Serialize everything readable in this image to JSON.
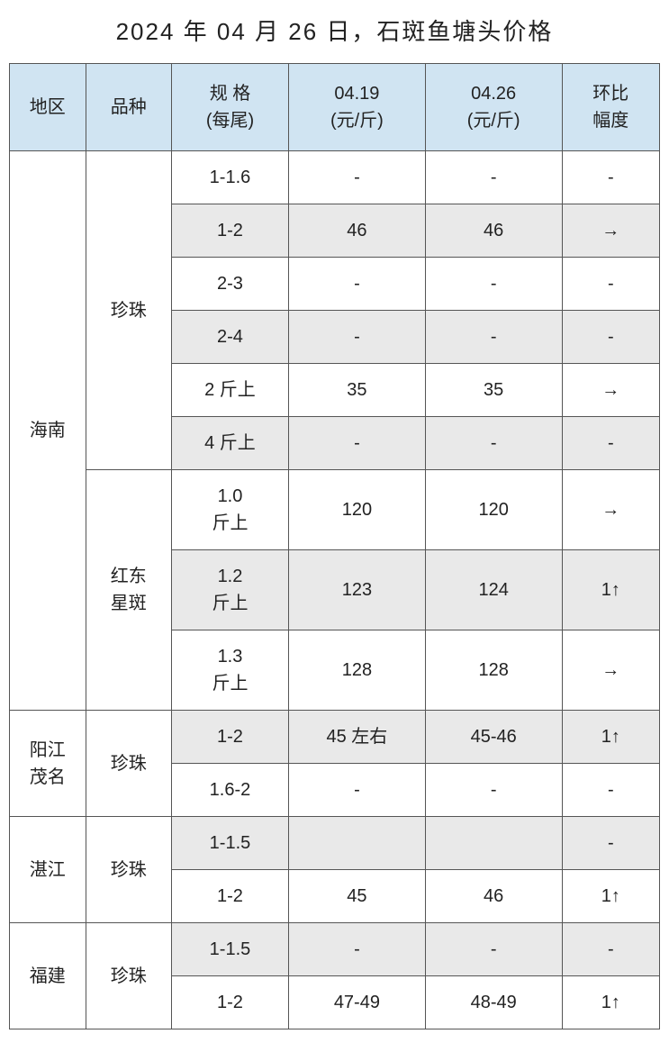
{
  "title": "2024 年 04 月 26 日，石斑鱼塘头价格",
  "headers": {
    "region": "地区",
    "variety": "品种",
    "spec": "规 格\n(每尾)",
    "price1": "04.19\n(元/斤)",
    "price2": "04.26\n(元/斤)",
    "trend": "环比\n幅度"
  },
  "colors": {
    "header_bg": "#d0e4f2",
    "alt_row_bg": "#e9e9e9",
    "border": "#555555",
    "text": "#222222",
    "bg": "#ffffff"
  },
  "regions": [
    {
      "name": "海南",
      "varieties": [
        {
          "name": "珍珠",
          "rows": [
            {
              "spec": "1-1.6",
              "p1": "-",
              "p2": "-",
              "trend": "-",
              "alt": false
            },
            {
              "spec": "1-2",
              "p1": "46",
              "p2": "46",
              "trend": "→",
              "alt": true
            },
            {
              "spec": "2-3",
              "p1": "-",
              "p2": "-",
              "trend": "-",
              "alt": false
            },
            {
              "spec": "2-4",
              "p1": "-",
              "p2": "-",
              "trend": "-",
              "alt": true
            },
            {
              "spec": "2 斤上",
              "p1": "35",
              "p2": "35",
              "trend": "→",
              "alt": false
            },
            {
              "spec": "4 斤上",
              "p1": "-",
              "p2": "-",
              "trend": "-",
              "alt": true
            }
          ]
        },
        {
          "name": "红东\n星斑",
          "rows": [
            {
              "spec": "1.0\n斤上",
              "p1": "120",
              "p2": "120",
              "trend": "→",
              "alt": false
            },
            {
              "spec": "1.2\n斤上",
              "p1": "123",
              "p2": "124",
              "trend": "1↑",
              "alt": true
            },
            {
              "spec": "1.3\n斤上",
              "p1": "128",
              "p2": "128",
              "trend": "→",
              "alt": false
            }
          ]
        }
      ]
    },
    {
      "name": "阳江\n茂名",
      "varieties": [
        {
          "name": "珍珠",
          "rows": [
            {
              "spec": "1-2",
              "p1": "45 左右",
              "p2": "45-46",
              "trend": "1↑",
              "alt": true
            },
            {
              "spec": "1.6-2",
              "p1": "-",
              "p2": "-",
              "trend": "-",
              "alt": false
            }
          ]
        }
      ]
    },
    {
      "name": "湛江",
      "varieties": [
        {
          "name": "珍珠",
          "rows": [
            {
              "spec": "1-1.5",
              "p1": "",
              "p2": "",
              "trend": "-",
              "alt": true
            },
            {
              "spec": "1-2",
              "p1": "45",
              "p2": "46",
              "trend": "1↑",
              "alt": false
            }
          ]
        }
      ]
    },
    {
      "name": "福建",
      "varieties": [
        {
          "name": "珍珠",
          "rows": [
            {
              "spec": "1-1.5",
              "p1": "-",
              "p2": "-",
              "trend": "-",
              "alt": true
            },
            {
              "spec": "1-2",
              "p1": "47-49",
              "p2": "48-49",
              "trend": "1↑",
              "alt": false
            }
          ]
        }
      ]
    }
  ]
}
